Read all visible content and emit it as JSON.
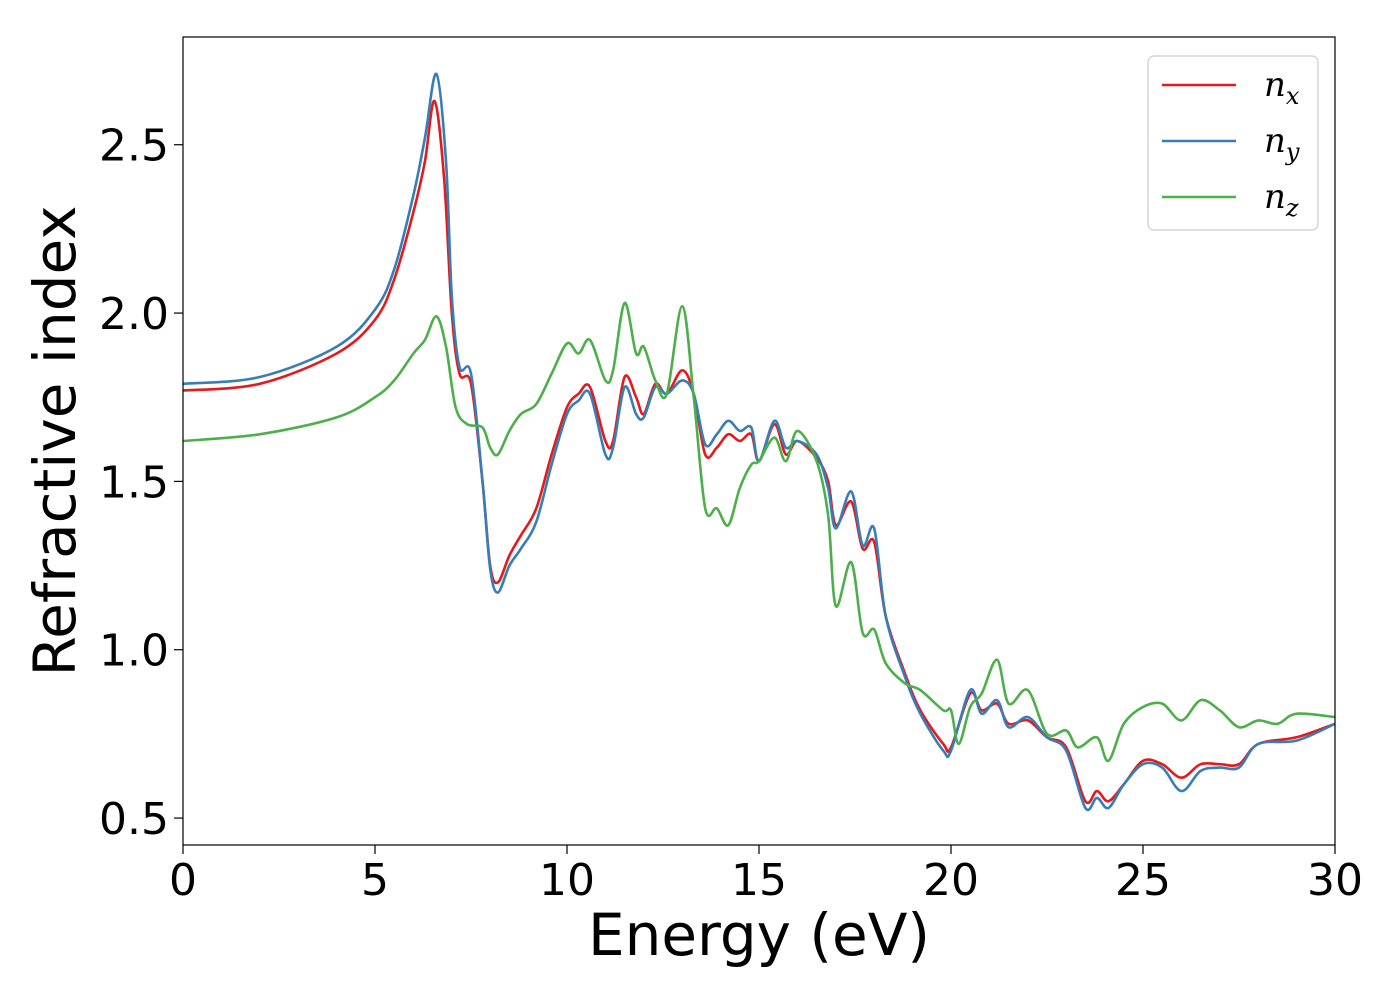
{
  "chart_data": {
    "type": "line",
    "xlabel": "Energy (eV)",
    "ylabel": "Refractive index",
    "xlim": [
      0,
      30
    ],
    "ylim": [
      0.42,
      2.82
    ],
    "xticks": [
      "0",
      "5",
      "10",
      "15",
      "20",
      "25",
      "30"
    ],
    "yticks": [
      "0.5",
      "1.0",
      "1.5",
      "2.0",
      "2.5"
    ],
    "grid": false,
    "legend_position": "top-right",
    "series": [
      {
        "name": "n",
        "sub": "x",
        "color": "#e41a1c",
        "points": [
          [
            0,
            1.77
          ],
          [
            2,
            1.79
          ],
          [
            4,
            1.88
          ],
          [
            5,
            1.98
          ],
          [
            5.5,
            2.1
          ],
          [
            6,
            2.3
          ],
          [
            6.3,
            2.45
          ],
          [
            6.55,
            2.63
          ],
          [
            6.8,
            2.4
          ],
          [
            7.0,
            2.0
          ],
          [
            7.2,
            1.82
          ],
          [
            7.5,
            1.79
          ],
          [
            7.8,
            1.5
          ],
          [
            8.0,
            1.25
          ],
          [
            8.2,
            1.2
          ],
          [
            8.5,
            1.28
          ],
          [
            8.8,
            1.34
          ],
          [
            9.2,
            1.42
          ],
          [
            9.6,
            1.58
          ],
          [
            10.0,
            1.72
          ],
          [
            10.3,
            1.76
          ],
          [
            10.6,
            1.78
          ],
          [
            11.0,
            1.62
          ],
          [
            11.2,
            1.62
          ],
          [
            11.5,
            1.81
          ],
          [
            11.8,
            1.75
          ],
          [
            12.0,
            1.7
          ],
          [
            12.3,
            1.79
          ],
          [
            12.6,
            1.76
          ],
          [
            13.0,
            1.83
          ],
          [
            13.3,
            1.76
          ],
          [
            13.6,
            1.58
          ],
          [
            13.9,
            1.6
          ],
          [
            14.2,
            1.64
          ],
          [
            14.5,
            1.62
          ],
          [
            14.8,
            1.64
          ],
          [
            15.0,
            1.56
          ],
          [
            15.4,
            1.67
          ],
          [
            15.7,
            1.58
          ],
          [
            16.0,
            1.62
          ],
          [
            16.5,
            1.57
          ],
          [
            16.8,
            1.5
          ],
          [
            17.0,
            1.37
          ],
          [
            17.4,
            1.44
          ],
          [
            17.7,
            1.3
          ],
          [
            18.0,
            1.32
          ],
          [
            18.3,
            1.1
          ],
          [
            18.8,
            0.93
          ],
          [
            19.2,
            0.82
          ],
          [
            19.8,
            0.72
          ],
          [
            20.0,
            0.71
          ],
          [
            20.5,
            0.87
          ],
          [
            20.8,
            0.82
          ],
          [
            21.2,
            0.84
          ],
          [
            21.5,
            0.78
          ],
          [
            22.0,
            0.79
          ],
          [
            22.5,
            0.74
          ],
          [
            23.0,
            0.71
          ],
          [
            23.5,
            0.55
          ],
          [
            23.8,
            0.58
          ],
          [
            24.1,
            0.55
          ],
          [
            24.5,
            0.6
          ],
          [
            25.0,
            0.67
          ],
          [
            25.5,
            0.66
          ],
          [
            26.0,
            0.62
          ],
          [
            26.5,
            0.66
          ],
          [
            27.0,
            0.66
          ],
          [
            27.5,
            0.66
          ],
          [
            28.0,
            0.72
          ],
          [
            29.0,
            0.74
          ],
          [
            30.0,
            0.78
          ]
        ]
      },
      {
        "name": "n",
        "sub": "y",
        "color": "#377eb8",
        "points": [
          [
            0,
            1.79
          ],
          [
            2,
            1.81
          ],
          [
            4,
            1.9
          ],
          [
            5,
            2.01
          ],
          [
            5.5,
            2.13
          ],
          [
            6,
            2.35
          ],
          [
            6.3,
            2.52
          ],
          [
            6.6,
            2.71
          ],
          [
            6.85,
            2.45
          ],
          [
            7.0,
            2.05
          ],
          [
            7.2,
            1.84
          ],
          [
            7.5,
            1.82
          ],
          [
            7.8,
            1.5
          ],
          [
            8.0,
            1.24
          ],
          [
            8.2,
            1.17
          ],
          [
            8.5,
            1.25
          ],
          [
            8.8,
            1.3
          ],
          [
            9.2,
            1.38
          ],
          [
            9.6,
            1.55
          ],
          [
            10.0,
            1.7
          ],
          [
            10.3,
            1.74
          ],
          [
            10.6,
            1.76
          ],
          [
            11.0,
            1.58
          ],
          [
            11.2,
            1.6
          ],
          [
            11.5,
            1.78
          ],
          [
            11.8,
            1.7
          ],
          [
            12.0,
            1.69
          ],
          [
            12.3,
            1.78
          ],
          [
            12.6,
            1.76
          ],
          [
            13.0,
            1.8
          ],
          [
            13.3,
            1.76
          ],
          [
            13.6,
            1.61
          ],
          [
            13.9,
            1.64
          ],
          [
            14.2,
            1.68
          ],
          [
            14.5,
            1.65
          ],
          [
            14.8,
            1.66
          ],
          [
            15.0,
            1.56
          ],
          [
            15.4,
            1.68
          ],
          [
            15.7,
            1.6
          ],
          [
            16.0,
            1.62
          ],
          [
            16.5,
            1.58
          ],
          [
            16.8,
            1.48
          ],
          [
            17.0,
            1.36
          ],
          [
            17.4,
            1.47
          ],
          [
            17.7,
            1.31
          ],
          [
            18.0,
            1.36
          ],
          [
            18.3,
            1.1
          ],
          [
            18.8,
            0.92
          ],
          [
            19.2,
            0.81
          ],
          [
            19.8,
            0.7
          ],
          [
            20.0,
            0.7
          ],
          [
            20.5,
            0.88
          ],
          [
            20.8,
            0.81
          ],
          [
            21.2,
            0.85
          ],
          [
            21.5,
            0.77
          ],
          [
            22.0,
            0.8
          ],
          [
            22.5,
            0.74
          ],
          [
            23.0,
            0.7
          ],
          [
            23.5,
            0.53
          ],
          [
            23.8,
            0.56
          ],
          [
            24.1,
            0.53
          ],
          [
            24.5,
            0.6
          ],
          [
            25.0,
            0.66
          ],
          [
            25.5,
            0.65
          ],
          [
            26.0,
            0.58
          ],
          [
            26.5,
            0.64
          ],
          [
            27.0,
            0.65
          ],
          [
            27.5,
            0.65
          ],
          [
            28.0,
            0.72
          ],
          [
            29.0,
            0.73
          ],
          [
            30.0,
            0.78
          ]
        ]
      },
      {
        "name": "n",
        "sub": "z",
        "color": "#4daf4a",
        "points": [
          [
            0,
            1.62
          ],
          [
            2,
            1.64
          ],
          [
            4,
            1.69
          ],
          [
            5,
            1.75
          ],
          [
            5.5,
            1.8
          ],
          [
            6,
            1.88
          ],
          [
            6.3,
            1.92
          ],
          [
            6.6,
            1.99
          ],
          [
            6.85,
            1.9
          ],
          [
            7.1,
            1.72
          ],
          [
            7.4,
            1.67
          ],
          [
            7.8,
            1.66
          ],
          [
            8.0,
            1.6
          ],
          [
            8.2,
            1.58
          ],
          [
            8.5,
            1.65
          ],
          [
            8.8,
            1.7
          ],
          [
            9.2,
            1.73
          ],
          [
            9.6,
            1.82
          ],
          [
            10.0,
            1.91
          ],
          [
            10.3,
            1.88
          ],
          [
            10.6,
            1.92
          ],
          [
            11.0,
            1.8
          ],
          [
            11.2,
            1.83
          ],
          [
            11.5,
            2.03
          ],
          [
            11.8,
            1.88
          ],
          [
            12.0,
            1.9
          ],
          [
            12.3,
            1.8
          ],
          [
            12.6,
            1.76
          ],
          [
            13.0,
            2.02
          ],
          [
            13.3,
            1.75
          ],
          [
            13.6,
            1.42
          ],
          [
            13.9,
            1.42
          ],
          [
            14.2,
            1.37
          ],
          [
            14.5,
            1.48
          ],
          [
            14.8,
            1.55
          ],
          [
            15.0,
            1.56
          ],
          [
            15.4,
            1.63
          ],
          [
            15.7,
            1.56
          ],
          [
            16.0,
            1.65
          ],
          [
            16.5,
            1.56
          ],
          [
            16.8,
            1.4
          ],
          [
            17.0,
            1.13
          ],
          [
            17.4,
            1.26
          ],
          [
            17.7,
            1.05
          ],
          [
            18.0,
            1.06
          ],
          [
            18.3,
            0.96
          ],
          [
            18.8,
            0.9
          ],
          [
            19.2,
            0.88
          ],
          [
            19.8,
            0.82
          ],
          [
            20.0,
            0.82
          ],
          [
            20.2,
            0.72
          ],
          [
            20.5,
            0.83
          ],
          [
            20.8,
            0.87
          ],
          [
            21.2,
            0.97
          ],
          [
            21.5,
            0.84
          ],
          [
            22.0,
            0.88
          ],
          [
            22.5,
            0.75
          ],
          [
            23.0,
            0.76
          ],
          [
            23.3,
            0.71
          ],
          [
            23.8,
            0.74
          ],
          [
            24.1,
            0.67
          ],
          [
            24.5,
            0.78
          ],
          [
            25.0,
            0.83
          ],
          [
            25.5,
            0.84
          ],
          [
            26.0,
            0.79
          ],
          [
            26.5,
            0.85
          ],
          [
            27.0,
            0.82
          ],
          [
            27.5,
            0.77
          ],
          [
            28.0,
            0.79
          ],
          [
            28.5,
            0.78
          ],
          [
            29.0,
            0.81
          ],
          [
            30.0,
            0.8
          ]
        ]
      }
    ]
  }
}
